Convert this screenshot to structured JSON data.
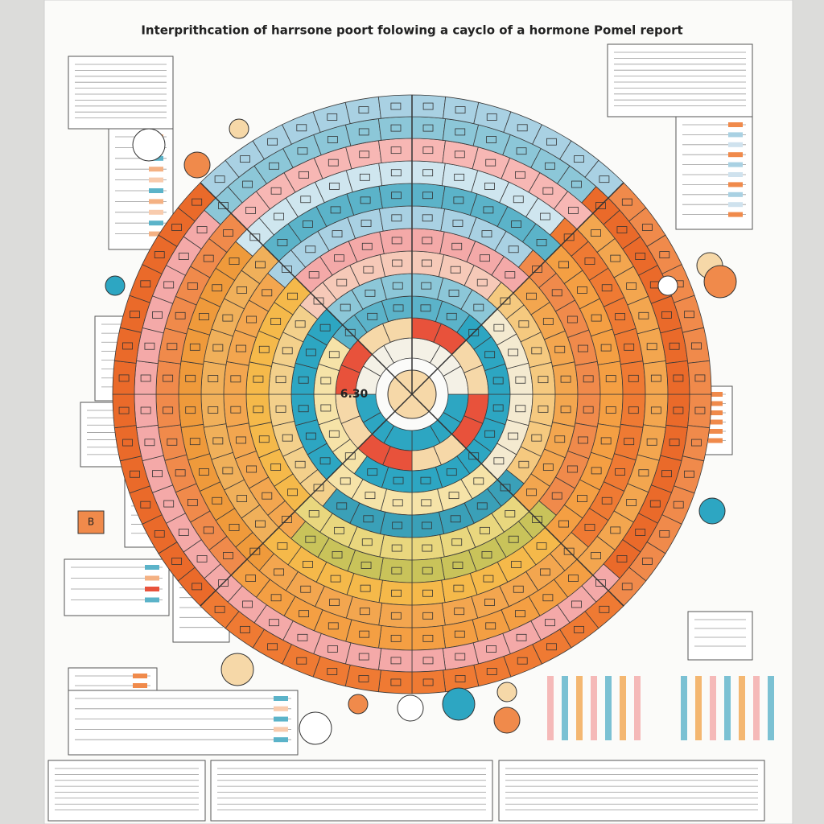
{
  "header": {
    "title": "Interprithcation of harrsone poort folowing a cayclo of a hormone Pomel report"
  },
  "labels": {
    "center": "6.30",
    "side_box": "B"
  }
}
